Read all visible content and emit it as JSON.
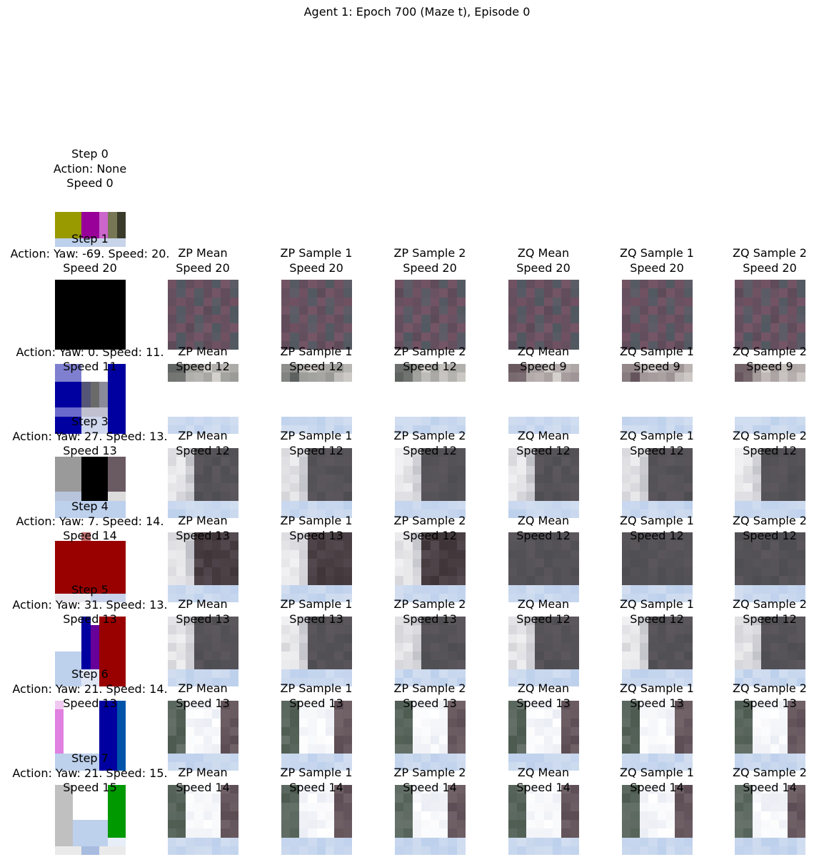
{
  "title": "Agent 1: Epoch 700 (Maze t), Episode 0",
  "colors": {
    "black": "#000000",
    "olive": "#999900",
    "magenta": "#990099",
    "pink": "#cc66cc",
    "blue": "#0000a0",
    "lightblue": "#7f7fd0",
    "red": "#990000",
    "green": "#009900",
    "brightblue": "#0055aa",
    "orchid": "#e080e0",
    "floor": "#bdd0ec",
    "white": "#f4f4f6",
    "gray": "#9a9a9a",
    "darkgray": "#4a4a4a",
    "mauve": "#6e5060",
    "slate": "#505860"
  },
  "steps": [
    {
      "lines": [
        "Step 0",
        "Action: None",
        "Speed 0"
      ]
    },
    {
      "lines": [
        "Step 1",
        "Action: Yaw: -69. Speed: 20.",
        "Speed 20"
      ],
      "preds": [
        [
          "ZP Mean",
          "Speed 20"
        ],
        [
          "ZP Sample 1",
          "Speed 20"
        ],
        [
          "ZP Sample 2",
          "Speed 20"
        ],
        [
          "ZQ Mean",
          "Speed 20"
        ],
        [
          "ZQ Sample 1",
          "Speed 20"
        ],
        [
          "ZQ Sample 2",
          "Speed 20"
        ]
      ]
    },
    {
      "lines": [
        "",
        "Action: Yaw: 0. Speed: 11.",
        "Speed 11"
      ],
      "preds": [
        [
          "ZP Mean",
          "Speed 12"
        ],
        [
          "ZP Sample 1",
          "Speed 12"
        ],
        [
          "ZP Sample 2",
          "Speed 12"
        ],
        [
          "ZQ Mean",
          "Speed 9"
        ],
        [
          "ZQ Sample 1",
          "Speed 9"
        ],
        [
          "ZQ Sample 2",
          "Speed 9"
        ]
      ]
    },
    {
      "lines": [
        "Step 3",
        "Action: Yaw: 27. Speed: 13.",
        "Speed 13"
      ],
      "preds": [
        [
          "ZP Mean",
          "Speed 12"
        ],
        [
          "ZP Sample 1",
          "Speed 12"
        ],
        [
          "ZP Sample 2",
          "Speed 12"
        ],
        [
          "ZQ Mean",
          "Speed 12"
        ],
        [
          "ZQ Sample 1",
          "Speed 12"
        ],
        [
          "ZQ Sample 2",
          "Speed 12"
        ]
      ]
    },
    {
      "lines": [
        "Step 4",
        "Action: Yaw: 7. Speed: 14.",
        "Speed 14"
      ],
      "preds": [
        [
          "ZP Mean",
          "Speed 13"
        ],
        [
          "ZP Sample 1",
          "Speed 13"
        ],
        [
          "ZP Sample 2",
          "Speed 12"
        ],
        [
          "ZQ Mean",
          "Speed 12"
        ],
        [
          "ZQ Sample 1",
          "Speed 12"
        ],
        [
          "ZQ Sample 2",
          "Speed 12"
        ]
      ]
    },
    {
      "lines": [
        "Step 5",
        "Action: Yaw: 31. Speed: 13.",
        "Speed 13"
      ],
      "preds": [
        [
          "ZP Mean",
          "Speed 13"
        ],
        [
          "ZP Sample 1",
          "Speed 13"
        ],
        [
          "ZP Sample 2",
          "Speed 13"
        ],
        [
          "ZQ Mean",
          "Speed 12"
        ],
        [
          "ZQ Sample 1",
          "Speed 12"
        ],
        [
          "ZQ Sample 2",
          "Speed 12"
        ]
      ]
    },
    {
      "lines": [
        "Step 6",
        "Action: Yaw: 21. Speed: 14.",
        "Speed 13"
      ],
      "preds": [
        [
          "ZP Mean",
          "Speed 13"
        ],
        [
          "ZP Sample 1",
          "Speed 13"
        ],
        [
          "ZP Sample 2",
          "Speed 13"
        ],
        [
          "ZQ Mean",
          "Speed 13"
        ],
        [
          "ZQ Sample 1",
          "Speed 13"
        ],
        [
          "ZQ Sample 2",
          "Speed 13"
        ]
      ]
    },
    {
      "lines": [
        "Step 7",
        "Action: Yaw: 21. Speed: 15.",
        "Speed 15"
      ],
      "preds": [
        [
          "ZP Mean",
          "Speed 14"
        ],
        [
          "ZP Sample 1",
          "Speed 14"
        ],
        [
          "ZP Sample 2",
          "Speed 14"
        ],
        [
          "ZQ Mean",
          "Speed 14"
        ],
        [
          "ZQ Sample 1",
          "Speed 14"
        ],
        [
          "ZQ Sample 2",
          "Speed 14"
        ]
      ]
    }
  ]
}
